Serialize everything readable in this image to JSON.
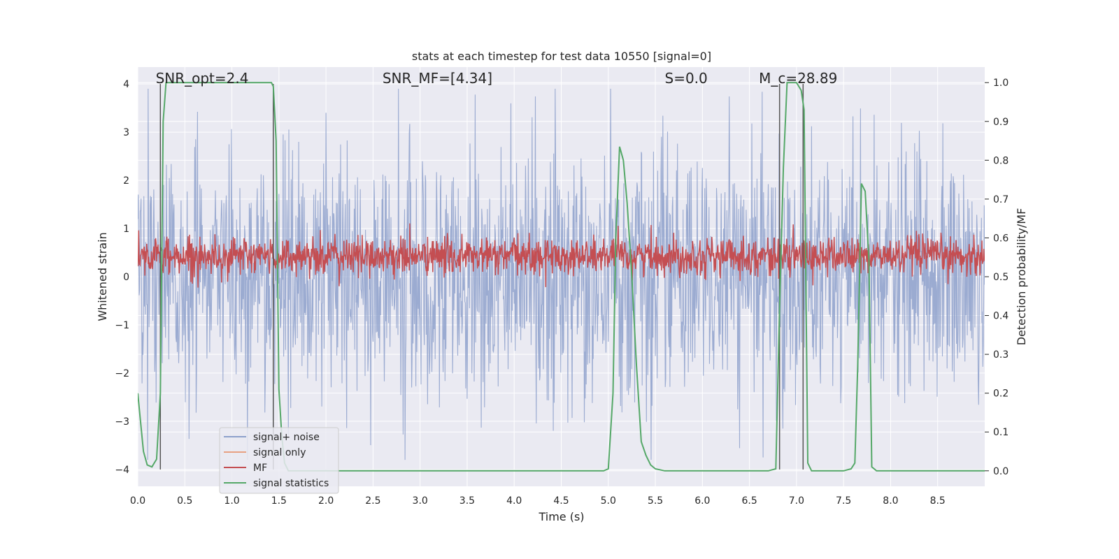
{
  "chart_data": {
    "type": "line",
    "title": "stats at each timestep for test data 10550 [signal=0]",
    "xlabel": "Time (s)",
    "ylabel_left": "Whitened strain",
    "ylabel_right": "Detection probability/MF",
    "xlim": [
      0,
      9.0
    ],
    "ylim_left": [
      -4.35,
      4.35
    ],
    "ylim_right": [
      -0.04,
      1.04
    ],
    "x_ticks": [
      0.0,
      0.5,
      1.0,
      1.5,
      2.0,
      2.5,
      3.0,
      3.5,
      4.0,
      4.5,
      5.0,
      5.5,
      6.0,
      6.5,
      7.0,
      7.5,
      8.0,
      8.5
    ],
    "x_tick_labels": [
      "0.0",
      "0.5",
      "1.0",
      "1.5",
      "2.0",
      "2.5",
      "3.0",
      "3.5",
      "4.0",
      "4.5",
      "5.0",
      "5.5",
      "6.0",
      "6.5",
      "7.0",
      "7.5",
      "8.0",
      "8.5"
    ],
    "y_left_ticks": [
      -4,
      -3,
      -2,
      -1,
      0,
      1,
      2,
      3,
      4
    ],
    "y_left_tick_labels": [
      "−4",
      "−3",
      "−2",
      "−1",
      "0",
      "1",
      "2",
      "3",
      "4"
    ],
    "y_right_ticks": [
      0.0,
      0.1,
      0.2,
      0.3,
      0.4,
      0.5,
      0.6,
      0.7,
      0.8,
      0.9,
      1.0
    ],
    "y_right_tick_labels": [
      "0.0",
      "0.1",
      "0.2",
      "0.3",
      "0.4",
      "0.5",
      "0.6",
      "0.7",
      "0.8",
      "0.9",
      "1.0"
    ],
    "grid": true,
    "legend_position": "lower-left",
    "annotations": [
      {
        "text": "SNR_opt=2.4",
        "x": 0.19
      },
      {
        "text": "SNR_MF=[4.34]",
        "x": 2.6
      },
      {
        "text": "S=0.0",
        "x": 5.6
      },
      {
        "text": "M_c=28.89",
        "x": 6.6
      }
    ],
    "vertical_markers": [
      0.24,
      1.44,
      6.82,
      7.07
    ],
    "series": [
      {
        "name": "signal+ noise",
        "color": "#8da0cb",
        "axis": "left",
        "kind": "noise",
        "sample_rate": 200,
        "noise_std": 1.25,
        "envelope_hint": [
          -3.8,
          3.9
        ]
      },
      {
        "name": "signal only",
        "color": "#e8a182",
        "axis": "left",
        "kind": "flat",
        "values": []
      },
      {
        "name": "MF",
        "color": "#c44e52",
        "axis": "right",
        "kind": "mf",
        "sample_rate": 200,
        "mean": 0.553,
        "std": 0.024,
        "peaks": [
          {
            "x": 1.94,
            "y": 0.62
          },
          {
            "x": 8.3,
            "y": 0.61
          }
        ]
      },
      {
        "name": "signal statistics",
        "color": "#55a868",
        "axis": "right",
        "kind": "line",
        "x": [
          0.0,
          0.06,
          0.1,
          0.15,
          0.2,
          0.24,
          0.27,
          0.3,
          0.33,
          0.36,
          0.4,
          0.5,
          0.8,
          1.0,
          1.2,
          1.38,
          1.42,
          1.44,
          1.47,
          1.5,
          1.53,
          1.56,
          1.6,
          1.8,
          2.5,
          3.0,
          3.5,
          4.0,
          4.5,
          4.95,
          5.0,
          5.05,
          5.08,
          5.12,
          5.16,
          5.2,
          5.25,
          5.3,
          5.35,
          5.4,
          5.45,
          5.5,
          5.6,
          6.0,
          6.5,
          6.7,
          6.78,
          6.82,
          6.86,
          6.9,
          6.95,
          7.0,
          7.05,
          7.08,
          7.12,
          7.16,
          7.2,
          7.5,
          7.58,
          7.62,
          7.65,
          7.69,
          7.73,
          7.77,
          7.8,
          7.85,
          7.9,
          8.0,
          8.5,
          9.0
        ],
        "y": [
          0.2,
          0.05,
          0.015,
          0.01,
          0.03,
          0.2,
          0.9,
          1.0,
          1.0,
          1.0,
          1.0,
          1.0,
          1.0,
          1.0,
          1.0,
          1.0,
          1.0,
          0.99,
          0.85,
          0.21,
          0.09,
          0.02,
          0.0,
          0.0,
          0.0,
          0.0,
          0.0,
          0.0,
          0.0,
          0.0,
          0.005,
          0.2,
          0.6,
          0.835,
          0.8,
          0.69,
          0.5,
          0.27,
          0.075,
          0.04,
          0.015,
          0.005,
          0.0,
          0.0,
          0.0,
          0.0,
          0.005,
          0.42,
          0.78,
          1.0,
          1.0,
          1.0,
          0.98,
          0.93,
          0.02,
          0.0,
          0.0,
          0.0,
          0.005,
          0.02,
          0.27,
          0.74,
          0.72,
          0.54,
          0.01,
          0.0,
          0.0,
          0.0,
          0.0,
          0.0
        ]
      }
    ]
  }
}
